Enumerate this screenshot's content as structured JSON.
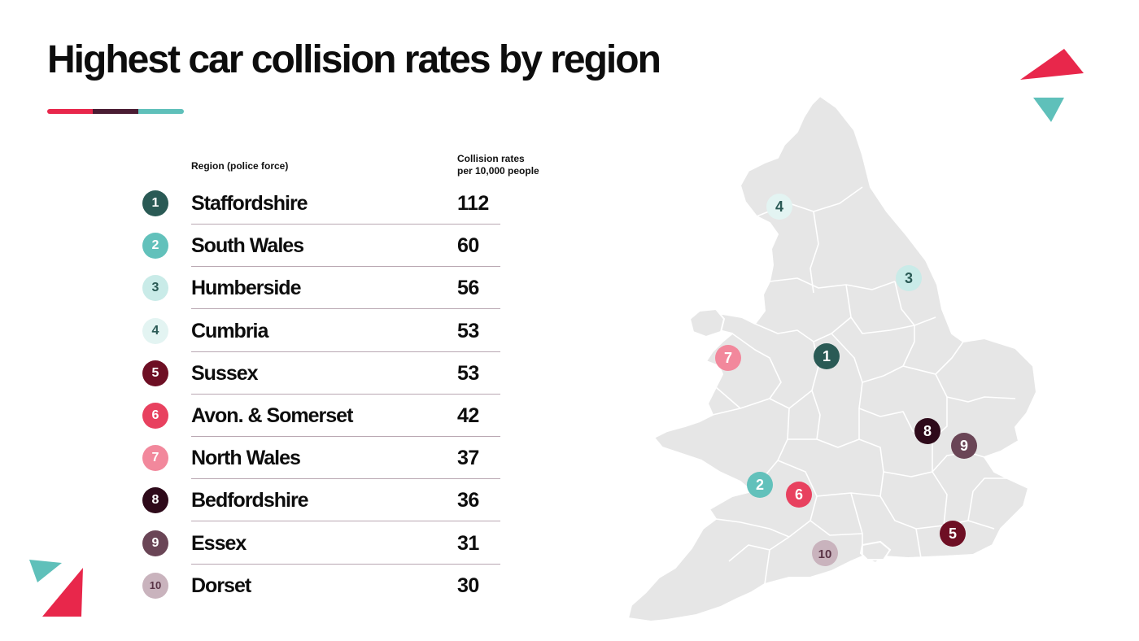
{
  "header": {
    "title": "Highest car collision rates by region"
  },
  "chart_data": {
    "type": "table",
    "title": "Highest car collision rates by region",
    "columns": {
      "region": "Region (police force)",
      "rate_line1": "Collision rates",
      "rate_line2": "per 10,000 people"
    },
    "rows": [
      {
        "rank": "1",
        "region": "Staffordshire",
        "rate": 112,
        "color": "#2a5a55",
        "text_color": "#ffffff"
      },
      {
        "rank": "2",
        "region": "South Wales",
        "rate": 60,
        "color": "#62c1bb",
        "text_color": "#ffffff"
      },
      {
        "rank": "3",
        "region": "Humberside",
        "rate": 56,
        "color": "#c9ebe8",
        "text_color": "#2a5a55"
      },
      {
        "rank": "4",
        "region": "Cumbria",
        "rate": 53,
        "color": "#e3f4f2",
        "text_color": "#2a5a55"
      },
      {
        "rank": "5",
        "region": "Sussex",
        "rate": 53,
        "color": "#6e0f24",
        "text_color": "#ffffff"
      },
      {
        "rank": "6",
        "region": "Avon. & Somerset",
        "rate": 42,
        "color": "#e8415f",
        "text_color": "#ffffff"
      },
      {
        "rank": "7",
        "region": "North Wales",
        "rate": 37,
        "color": "#f2889c",
        "text_color": "#ffffff"
      },
      {
        "rank": "8",
        "region": "Bedfordshire",
        "rate": 36,
        "color": "#2e0a1a",
        "text_color": "#ffffff"
      },
      {
        "rank": "9",
        "region": "Essex",
        "rate": 31,
        "color": "#6a4556",
        "text_color": "#ffffff"
      },
      {
        "rank": "10",
        "region": "Dorset",
        "rate": 30,
        "color": "#c9b3bd",
        "text_color": "#5a3446"
      }
    ]
  },
  "colors": {
    "accent_red": "#e8274b",
    "accent_plum": "#4a1c33",
    "accent_teal": "#5fc0ba",
    "map_fill": "#e6e6e6",
    "map_border": "#ffffff",
    "row_divider": "#b9a7b2"
  },
  "icons": {
    "map": "england-wales-map-icon",
    "triangle_top_right": "triangle-decoration-icon",
    "triangle_bottom_left": "triangle-decoration-icon"
  }
}
